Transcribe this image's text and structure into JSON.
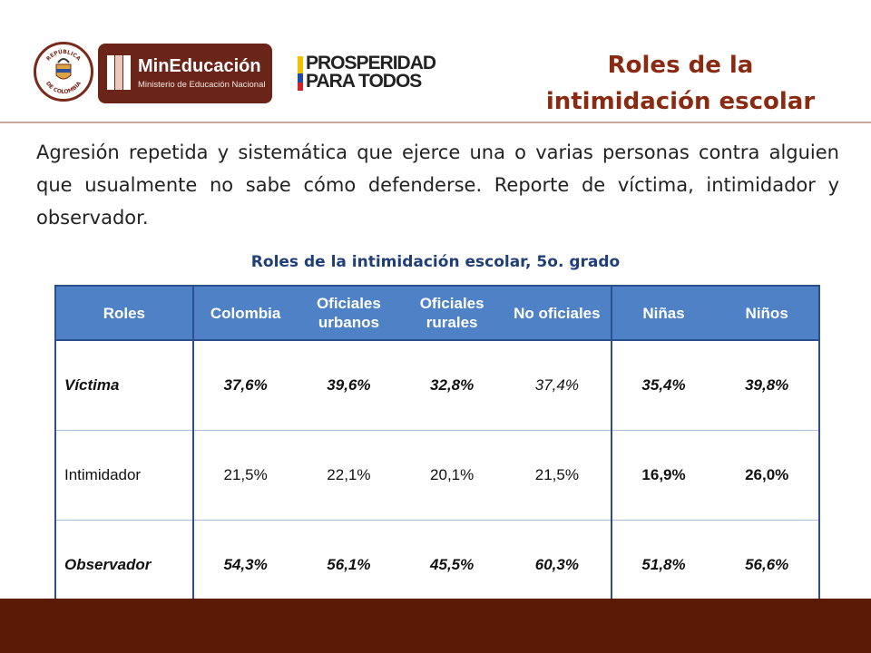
{
  "header": {
    "seal_text_top": "REPÚBLICA",
    "seal_text_bottom": "DE COLOMBIA",
    "ministry_name": "MinEducación",
    "ministry_sub": "Ministerio de Educación Nacional",
    "prosperidad_line1": "PROSPERIDAD",
    "prosperidad_line2": "PARA TODOS",
    "title_line1": "Roles de la",
    "title_line2": "intimidación escolar",
    "colors": {
      "brand_brown": "#6b2418",
      "title_red": "#8b2a12"
    }
  },
  "intro": "Agresión repetida y sistemática que ejerce una o varias personas contra alguien que usualmente no sabe cómo defenderse. Reporte de víctima, intimidador y observador.",
  "table": {
    "caption": "Roles de la intimidación escolar, 5o. grado",
    "headers": [
      "Roles",
      "Colombia",
      "Oficiales urbanos",
      "Oficiales rurales",
      "No oficiales",
      "Niñas",
      "Niños"
    ],
    "rows": [
      {
        "role": "Víctima",
        "values": [
          "37,6%",
          "39,6%",
          "32,8%",
          "37,4%",
          "35,4%",
          "39,8%"
        ]
      },
      {
        "role": "Intimidador",
        "values": [
          "21,5%",
          "22,1%",
          "20,1%",
          "21,5%",
          "16,9%",
          "26,0%"
        ]
      },
      {
        "role": "Observador",
        "values": [
          "54,3%",
          "56,1%",
          "45,5%",
          "60,3%",
          "51,8%",
          "56,6%"
        ]
      }
    ],
    "colors": {
      "header_bg": "#4f81c7",
      "border": "#2d4f8e",
      "caption": "#1f3f7a"
    }
  },
  "footer": {
    "color": "#5b1a06"
  }
}
